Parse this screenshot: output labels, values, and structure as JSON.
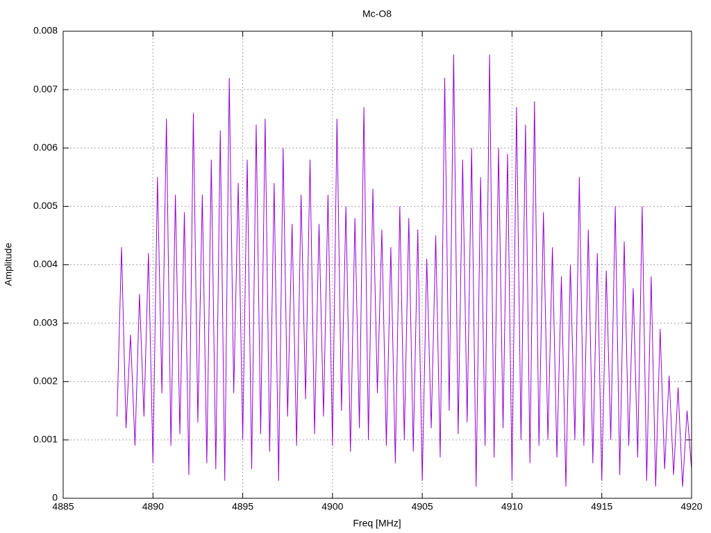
{
  "chart_data": {
    "type": "line",
    "title": "Mc-O8",
    "xlabel": "Freq [MHz]",
    "ylabel": "Amplitude",
    "x": [
      4888,
      4888.25,
      4888.5,
      4888.75,
      4889,
      4889.25,
      4889.5,
      4889.75,
      4890,
      4890.25,
      4890.5,
      4890.75,
      4891,
      4891.25,
      4891.5,
      4891.75,
      4892,
      4892.25,
      4892.5,
      4892.75,
      4893,
      4893.25,
      4893.5,
      4893.75,
      4894,
      4894.25,
      4894.5,
      4894.75,
      4895,
      4895.25,
      4895.5,
      4895.75,
      4896,
      4896.25,
      4896.5,
      4896.75,
      4897,
      4897.25,
      4897.5,
      4897.75,
      4898,
      4898.25,
      4898.5,
      4898.75,
      4899,
      4899.25,
      4899.5,
      4899.75,
      4900,
      4900.25,
      4900.5,
      4900.75,
      4901,
      4901.25,
      4901.5,
      4901.75,
      4902,
      4902.25,
      4902.5,
      4902.75,
      4903,
      4903.25,
      4903.5,
      4903.75,
      4904,
      4904.25,
      4904.5,
      4904.75,
      4905,
      4905.25,
      4905.5,
      4905.75,
      4906,
      4906.25,
      4906.5,
      4906.75,
      4907,
      4907.25,
      4907.5,
      4907.75,
      4908,
      4908.25,
      4908.5,
      4908.75,
      4909,
      4909.25,
      4909.5,
      4909.75,
      4910,
      4910.25,
      4910.5,
      4910.75,
      4911,
      4911.25,
      4911.5,
      4911.75,
      4912,
      4912.25,
      4912.5,
      4912.75,
      4913,
      4913.25,
      4913.5,
      4913.75,
      4914,
      4914.25,
      4914.5,
      4914.75,
      4915,
      4915.25,
      4915.5,
      4915.75,
      4916,
      4916.25,
      4916.5,
      4916.75,
      4917,
      4917.25,
      4917.5,
      4917.75,
      4918,
      4918.25,
      4918.5,
      4918.75,
      4919,
      4919.25,
      4919.5,
      4919.75,
      4920
    ],
    "series": [
      {
        "name": null,
        "color": "#9400d3",
        "values": [
          0.0014,
          0.0043,
          0.0012,
          0.0028,
          0.0009,
          0.0035,
          0.0014,
          0.0042,
          0.0006,
          0.0055,
          0.0018,
          0.0065,
          0.0009,
          0.0052,
          0.0011,
          0.0049,
          0.0004,
          0.0066,
          0.0013,
          0.0052,
          0.0006,
          0.0058,
          0.0005,
          0.0063,
          0.0003,
          0.0072,
          0.0018,
          0.0054,
          0.001,
          0.0058,
          0.0005,
          0.0064,
          0.0011,
          0.0065,
          0.0008,
          0.0054,
          0.0003,
          0.006,
          0.0014,
          0.0047,
          0.0009,
          0.0052,
          0.0017,
          0.0058,
          0.0011,
          0.0047,
          0.0014,
          0.0052,
          0.0009,
          0.0065,
          0.0015,
          0.005,
          0.0008,
          0.0048,
          0.0012,
          0.0067,
          0.001,
          0.0053,
          0.0018,
          0.0046,
          0.0009,
          0.0043,
          0.0006,
          0.005,
          0.001,
          0.0048,
          0.0008,
          0.0046,
          0.0003,
          0.0041,
          0.0012,
          0.0045,
          0.0007,
          0.0072,
          0.0015,
          0.0076,
          0.0011,
          0.0058,
          0.0013,
          0.006,
          0.0002,
          0.0055,
          0.0009,
          0.0076,
          0.0007,
          0.006,
          0.0012,
          0.0059,
          0.0003,
          0.0067,
          0.001,
          0.0064,
          0.0006,
          0.0068,
          0.0009,
          0.0049,
          0.001,
          0.0043,
          0.0007,
          0.0038,
          0.0002,
          0.004,
          0.001,
          0.0055,
          0.0009,
          0.0046,
          0.0006,
          0.0042,
          0.0003,
          0.0039,
          0.001,
          0.005,
          0.0004,
          0.0044,
          0.0009,
          0.0036,
          0.0007,
          0.005,
          0.0003,
          0.0038,
          0.0002,
          0.0029,
          0.0005,
          0.0021,
          0.0004,
          0.0019,
          0.0002,
          0.0015,
          0.0005
        ]
      }
    ],
    "xlim": [
      4885,
      4920
    ],
    "xticks": [
      4885,
      4890,
      4895,
      4900,
      4905,
      4910,
      4915,
      4920
    ],
    "ylim": [
      0,
      0.008
    ],
    "yticks": [
      0,
      0.001,
      0.002,
      0.003,
      0.004,
      0.005,
      0.006,
      0.007,
      0.008
    ],
    "grid": true
  }
}
